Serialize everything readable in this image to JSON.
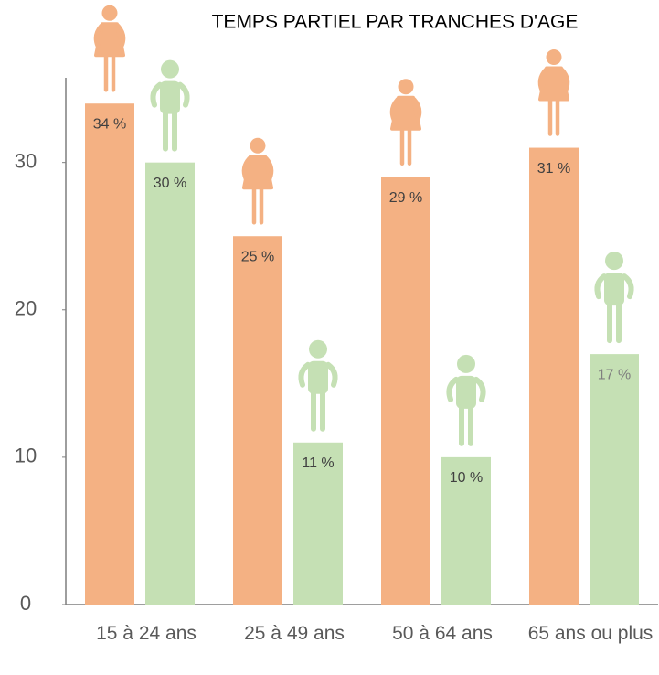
{
  "chart_data": {
    "type": "bar",
    "title": "TEMPS PARTIEL PAR TRANCHES D'AGE",
    "categories": [
      "15 à 24 ans",
      "25 à 49 ans",
      "50 à 64 ans",
      "65 ans ou plus"
    ],
    "series": [
      {
        "color": "#f4b183",
        "values": [
          34,
          25,
          29,
          31
        ],
        "value_labels": [
          "34 %",
          "25 %",
          "29 %",
          "31 %"
        ]
      },
      {
        "color": "#c5e0b4",
        "values": [
          30,
          11,
          10,
          17
        ],
        "value_labels": [
          "30 %",
          "11 %",
          "10 %",
          "17 %"
        ]
      }
    ],
    "ylim": [
      0,
      36
    ],
    "yticks": [
      0,
      10,
      20,
      30
    ],
    "grid": false
  }
}
